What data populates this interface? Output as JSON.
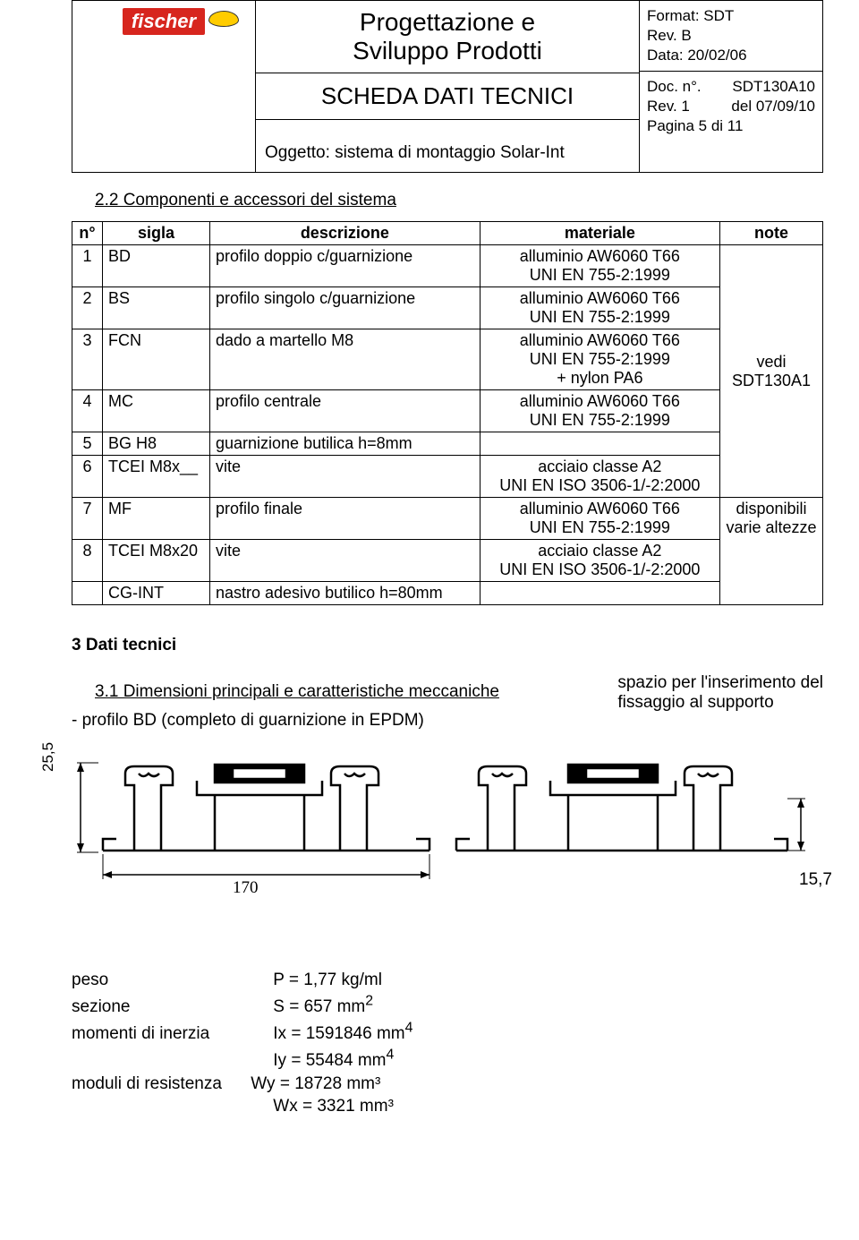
{
  "header": {
    "logo_text": "fischer",
    "title_line1": "Progettazione e",
    "title_line2": "Sviluppo Prodotti",
    "subtitle": "SCHEDA DATI TECNICI",
    "subject": "Oggetto:  sistema di montaggio Solar-Int",
    "meta_top": "Format: SDT\nRev. B\nData: 20/02/06",
    "meta_doc_label": "Doc. n°.",
    "meta_doc_val": "SDT130A10",
    "meta_rev_label": "Rev. 1",
    "meta_rev_val": "del 07/09/10",
    "meta_page": "Pagina 5 di 11"
  },
  "sec22": "2.2 Componenti e accessori del sistema",
  "table": {
    "head": {
      "n": "n°",
      "sigla": "sigla",
      "desc": "descrizione",
      "mat": "materiale",
      "note": "note"
    },
    "note_merged1": "vedi\nSDT130A1",
    "rows": [
      {
        "n": "1",
        "sig": "BD",
        "desc": "profilo doppio c/guarnizione",
        "mat": "alluminio AW6060 T66\nUNI EN 755-2:1999"
      },
      {
        "n": "2",
        "sig": "BS",
        "desc": "profilo singolo c/guarnizione",
        "mat": "alluminio AW6060 T66\nUNI EN 755-2:1999"
      },
      {
        "n": "3",
        "sig": "FCN",
        "desc": "dado a martello M8",
        "mat": "alluminio AW6060 T66\nUNI EN 755-2:1999\n+ nylon PA6"
      },
      {
        "n": "4",
        "sig": "MC",
        "desc": "profilo centrale",
        "mat": "alluminio AW6060 T66\nUNI EN 755-2:1999"
      },
      {
        "n": "5",
        "sig": "BG H8",
        "desc": "guarnizione butilica h=8mm",
        "mat": ""
      },
      {
        "n": "6",
        "sig": "TCEI M8x__",
        "desc": "vite",
        "mat": "acciaio classe A2\nUNI EN ISO 3506-1/-2:2000"
      },
      {
        "n": "7",
        "sig": "MF",
        "desc": "profilo finale",
        "mat": "alluminio AW6060 T66\nUNI EN 755-2:1999",
        "note": "disponibili\nvarie altezze"
      },
      {
        "n": "8",
        "sig": "TCEI M8x20",
        "desc": "vite",
        "mat": "acciaio classe A2\nUNI EN ISO 3506-1/-2:2000"
      },
      {
        "n": "",
        "sig": "CG-INT",
        "desc": "nastro adesivo butilico h=80mm",
        "mat": ""
      }
    ]
  },
  "sec3": "3    Dati tecnici",
  "sec31": "3.1 Dimensioni principali e caratteristiche meccaniche",
  "sec31_sub": "- profilo BD (completo di guarnizione in EPDM)",
  "caption_right": "spazio per l'inserimento del\nfissaggio al supporto",
  "dims": {
    "height": "25,5",
    "width": "170",
    "thick": "15,7"
  },
  "specs": {
    "peso_l": "peso",
    "peso_v": "P = 1,77 kg/ml",
    "sez_l": "sezione",
    "sez_v": "S = 657 mm",
    "sez_sup": "2",
    "mom_l": "momenti di inerzia",
    "ix_v": "Ix = 1591846 mm",
    "ix_sup": "4",
    "iy_v": "Iy = 55484 mm",
    "iy_sup": "4",
    "mod_l": "moduli di resistenza",
    "wy_v": "Wy = 18728 mm³",
    "wx_v": "Wx = 3321 mm³"
  },
  "colors": {
    "brand": "#d7261e",
    "accent": "#ffcc00",
    "line": "#000000",
    "bg": "#ffffff"
  }
}
